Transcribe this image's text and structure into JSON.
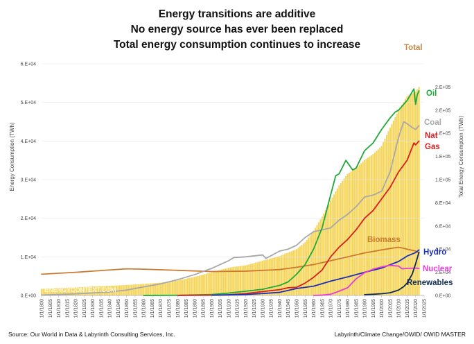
{
  "title": {
    "lines": [
      "Energy transitions are additive",
      "No energy source has ever been replaced",
      "Total energy consumption continues to increase"
    ]
  },
  "footer": {
    "source": "Source: Our World in Data & Labyrinth Consulting Services, Inc.",
    "credit": "Labyrinth/Climate Change/OWID/ OWID MASTER"
  },
  "watermark": "ENERGYCONTEXT.COM",
  "colors": {
    "total": "#f5d55a",
    "total_label": "#c8884a",
    "oil": "#1fa83a",
    "coal": "#a8a8a8",
    "gas": "#d81e1e",
    "biomass": "#cc7a30",
    "hydro": "#1b2fb5",
    "nuclear": "#e83ad8",
    "renewables": "#0d2a55"
  },
  "chart_data": {
    "type": "line",
    "title": "Energy transitions are additive / No energy source has ever been replaced / Total energy consumption continues to increase",
    "xlabel": "",
    "ylabel": "Energy Consumption (TWh)",
    "y2label": "Total Energy Consumption (TWh)",
    "ylim": [
      0,
      60000
    ],
    "y2lim": [
      0,
      200000
    ],
    "yticks": [
      "0.E+00",
      "1.E+04",
      "2.E+04",
      "3.E+04",
      "4.E+04",
      "5.E+04",
      "6.E+04"
    ],
    "y2ticks": [
      "0.E+00",
      "2.E+04",
      "4.E+04",
      "6.E+04",
      "8.E+04",
      "1.E+05",
      "1.E+05",
      "1.E+05",
      "2.E+05",
      "2.E+05"
    ],
    "y2tick_values": [
      0,
      20000,
      40000,
      60000,
      80000,
      100000,
      120000,
      140000,
      160000,
      180000
    ],
    "xlim": [
      1800,
      2025
    ],
    "xticks": [
      "1/1/1800",
      "1/1/1805",
      "1/1/1810",
      "1/1/1815",
      "1/1/1820",
      "1/1/1825",
      "1/1/1830",
      "1/1/1835",
      "1/1/1840",
      "1/1/1845",
      "1/1/1850",
      "1/1/1855",
      "1/1/1860",
      "1/1/1865",
      "1/1/1870",
      "1/1/1875",
      "1/1/1880",
      "1/1/1885",
      "1/1/1890",
      "1/1/1895",
      "1/1/1900",
      "1/1/1905",
      "1/1/1910",
      "1/1/1915",
      "1/1/1920",
      "1/1/1925",
      "1/1/1930",
      "1/1/1935",
      "1/1/1940",
      "1/1/1945",
      "1/1/1950",
      "1/1/1955",
      "1/1/1960",
      "1/1/1965",
      "1/1/1970",
      "1/1/1975",
      "1/1/1980",
      "1/1/1985",
      "1/1/1990",
      "1/1/1995",
      "1/1/2000",
      "1/1/2005",
      "1/1/2010",
      "1/1/2015",
      "1/1/2020",
      "1/1/2025"
    ],
    "total": {
      "name": "Total",
      "axis": "right",
      "kind": "bar",
      "x": [
        1800,
        1850,
        1870,
        1880,
        1890,
        1900,
        1910,
        1920,
        1930,
        1940,
        1950,
        1955,
        1960,
        1965,
        1970,
        1975,
        1980,
        1985,
        1990,
        1995,
        2000,
        2005,
        2010,
        2015,
        2020,
        2022
      ],
      "y": [
        5700,
        9000,
        11000,
        13000,
        16000,
        20000,
        24000,
        26000,
        30000,
        34000,
        40000,
        46000,
        56000,
        68000,
        82000,
        95000,
        105000,
        110000,
        117000,
        122000,
        129000,
        145000,
        160000,
        172000,
        176000,
        180000
      ]
    },
    "series": [
      {
        "name": "Biomass",
        "x": [
          1800,
          1820,
          1840,
          1850,
          1860,
          1880,
          1900,
          1920,
          1940,
          1950,
          1960,
          1970,
          1980,
          1990,
          2000,
          2010,
          2015,
          2020,
          2022
        ],
        "y": [
          5500,
          6000,
          6600,
          6900,
          6800,
          6500,
          6200,
          6300,
          6700,
          7300,
          8000,
          9000,
          10000,
          11000,
          11800,
          12500,
          12000,
          11500,
          11000
        ]
      },
      {
        "name": "Coal",
        "x": [
          1800,
          1820,
          1840,
          1850,
          1860,
          1870,
          1880,
          1890,
          1900,
          1910,
          1913,
          1920,
          1930,
          1932,
          1940,
          1945,
          1950,
          1955,
          1960,
          1965,
          1970,
          1975,
          1980,
          1985,
          1990,
          1995,
          2000,
          2005,
          2010,
          2013,
          2015,
          2018,
          2020,
          2022
        ],
        "y": [
          100,
          400,
          900,
          1400,
          2200,
          3000,
          4100,
          5400,
          7000,
          9000,
          9800,
          10000,
          10500,
          9600,
          11500,
          12000,
          13000,
          15000,
          16500,
          17000,
          17500,
          19500,
          21000,
          23000,
          25500,
          26000,
          27000,
          32000,
          41000,
          45000,
          44500,
          43500,
          43000,
          44000
        ]
      },
      {
        "name": "Oil",
        "x": [
          1860,
          1880,
          1900,
          1910,
          1920,
          1930,
          1940,
          1945,
          1950,
          1955,
          1960,
          1965,
          1970,
          1973,
          1975,
          1979,
          1983,
          1985,
          1990,
          1995,
          2000,
          2005,
          2008,
          2010,
          2015,
          2019,
          2020,
          2021,
          2022
        ],
        "y": [
          10,
          50,
          250,
          600,
          1100,
          1600,
          2600,
          3500,
          5500,
          8000,
          12000,
          17500,
          26000,
          31000,
          31500,
          35000,
          32500,
          33000,
          37500,
          39500,
          43000,
          46000,
          47500,
          48000,
          50500,
          53500,
          49500,
          52000,
          53000
        ]
      },
      {
        "name": "Nat Gas",
        "x": [
          1880,
          1900,
          1910,
          1920,
          1930,
          1940,
          1945,
          1950,
          1955,
          1960,
          1965,
          1970,
          1975,
          1980,
          1985,
          1990,
          1995,
          2000,
          2005,
          2010,
          2015,
          2019,
          2020,
          2022
        ],
        "y": [
          10,
          70,
          180,
          500,
          1000,
          1500,
          2000,
          2100,
          3200,
          4700,
          6600,
          10000,
          12500,
          14500,
          17000,
          20000,
          22000,
          25000,
          28000,
          32000,
          35000,
          39500,
          39000,
          40000
        ]
      },
      {
        "name": "Hydro",
        "x": [
          1900,
          1910,
          1920,
          1930,
          1940,
          1950,
          1960,
          1970,
          1980,
          1990,
          2000,
          2010,
          2015,
          2020,
          2022
        ],
        "y": [
          50,
          150,
          250,
          500,
          800,
          1800,
          2400,
          3700,
          4800,
          6000,
          7100,
          8800,
          10200,
          11100,
          11800
        ]
      },
      {
        "name": "Nuclear",
        "x": [
          1960,
          1965,
          1970,
          1975,
          1980,
          1985,
          1990,
          1995,
          2000,
          2005,
          2010,
          2012,
          2015,
          2020,
          2022
        ],
        "y": [
          0,
          80,
          300,
          1100,
          2000,
          4300,
          5900,
          6800,
          7400,
          7800,
          7600,
          6900,
          7000,
          7100,
          7000
        ]
      },
      {
        "name": "Renewables",
        "x": [
          1990,
          1995,
          2000,
          2005,
          2010,
          2013,
          2015,
          2018,
          2020,
          2022
        ],
        "y": [
          200,
          300,
          450,
          700,
          1400,
          2300,
          3200,
          5500,
          8200,
          11200
        ]
      }
    ]
  }
}
